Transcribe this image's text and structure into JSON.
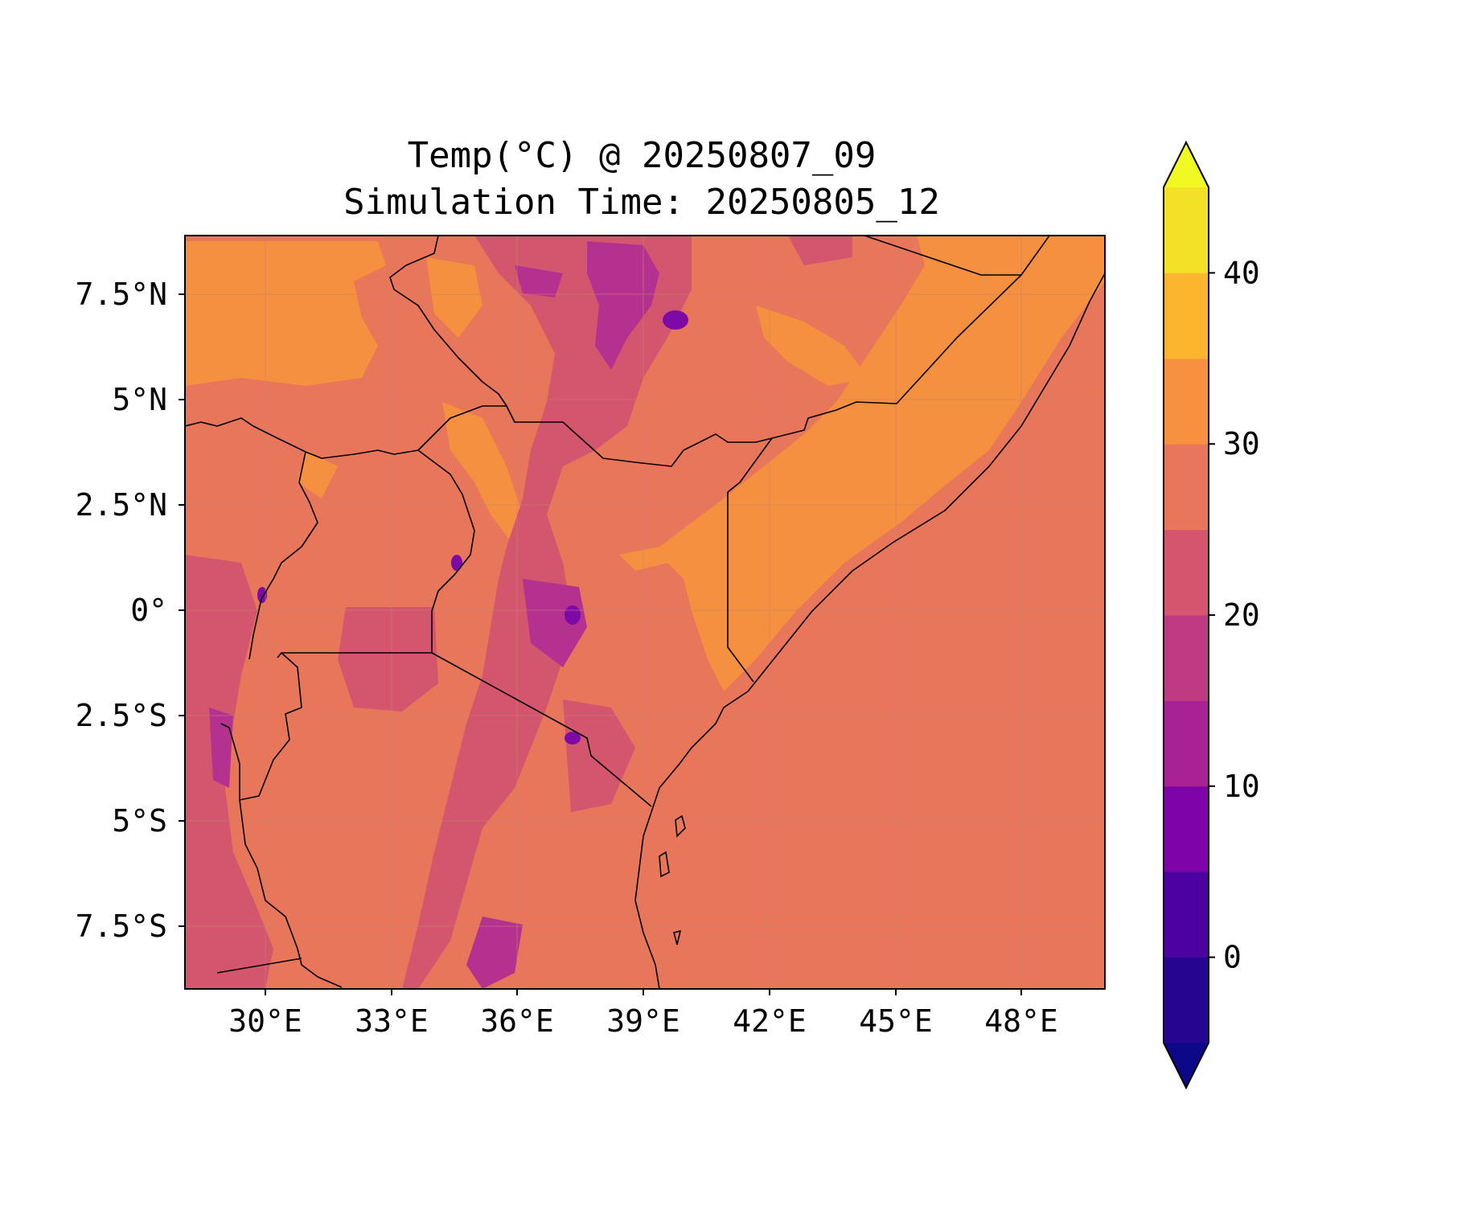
{
  "title": {
    "line1": "Temp(°C) @ 20250807_09",
    "line2": "Simulation Time: 20250805_12"
  },
  "map": {
    "x_ticks": [
      "30°E",
      "33°E",
      "36°E",
      "39°E",
      "42°E",
      "45°E",
      "48°E"
    ],
    "y_ticks": [
      "7.5°N",
      "5°N",
      "2.5°N",
      "0°",
      "2.5°S",
      "5°S",
      "7.5°S"
    ],
    "colors": {
      "background_fill": "#e8765a",
      "warm_fill": "#f49040",
      "cool_fill": "#d4566e",
      "cold_fill": "#b5318f",
      "very_cold_fill": "#7d0aa6",
      "border": "#000000",
      "gridline": "#c9826e"
    }
  },
  "colorbar": {
    "tick_labels": [
      "0",
      "10",
      "20",
      "30",
      "40"
    ],
    "bands": [
      {
        "from": -5,
        "to": 0,
        "color": "#240691"
      },
      {
        "from": 0,
        "to": 5,
        "color": "#4c02a1"
      },
      {
        "from": 5,
        "to": 10,
        "color": "#7e03a8"
      },
      {
        "from": 10,
        "to": 15,
        "color": "#a82296"
      },
      {
        "from": 15,
        "to": 20,
        "color": "#c03a83"
      },
      {
        "from": 20,
        "to": 25,
        "color": "#d5546e"
      },
      {
        "from": 25,
        "to": 30,
        "color": "#e8765a"
      },
      {
        "from": 30,
        "to": 35,
        "color": "#f79140"
      },
      {
        "from": 35,
        "to": 40,
        "color": "#fdb42f"
      },
      {
        "from": 40,
        "to": 45,
        "color": "#f2e127"
      }
    ],
    "extend_low_color": "#0d0887",
    "extend_high_color": "#f0f921"
  }
}
